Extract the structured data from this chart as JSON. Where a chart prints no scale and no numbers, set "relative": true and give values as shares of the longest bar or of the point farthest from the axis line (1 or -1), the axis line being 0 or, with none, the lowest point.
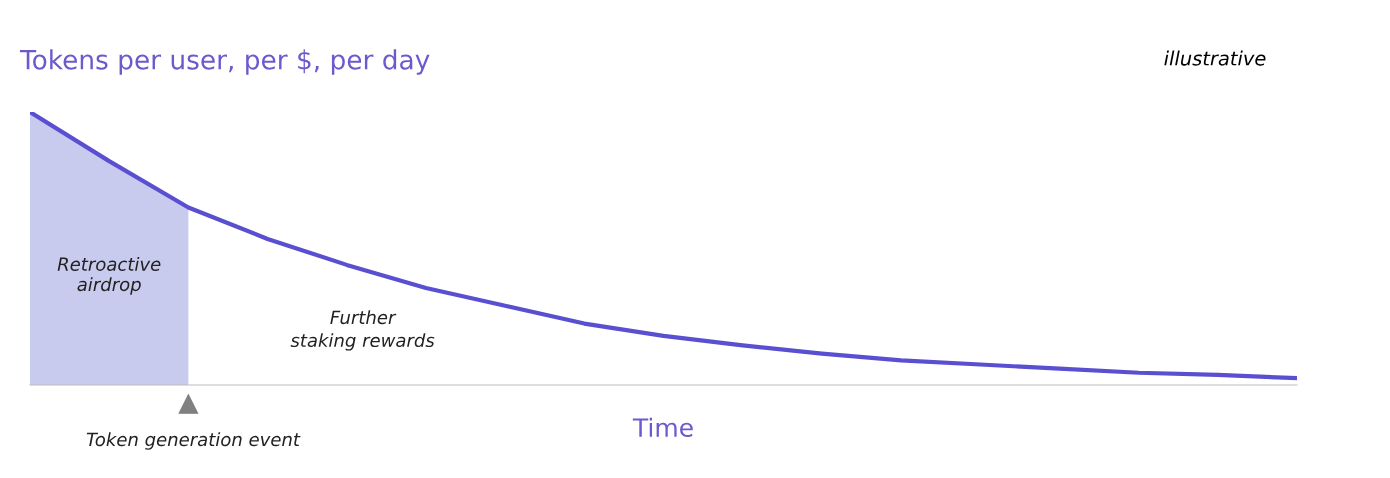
{
  "chart_data": {
    "type": "line",
    "relative": true,
    "title": "Tokens per user, per $, per day",
    "xlabel": "Time",
    "categories": [
      null,
      null,
      null,
      null,
      null,
      null,
      null,
      null,
      null,
      null,
      null,
      null,
      null,
      null,
      null,
      null,
      null
    ],
    "series": [
      {
        "type": "area",
        "color": "#c9cbee",
        "values": [
          1.0,
          0.82,
          0.65,
          null,
          null,
          null,
          null,
          null,
          null,
          null,
          null,
          null,
          null,
          null,
          null,
          null,
          null
        ]
      },
      {
        "color": "#5a4fd0",
        "values": [
          1.0,
          0.82,
          0.65,
          0.535,
          0.44,
          0.355,
          0.29,
          0.225,
          0.18,
          0.145,
          0.115,
          0.09,
          0.075,
          0.06,
          0.045,
          0.037,
          0.025
        ]
      }
    ],
    "annotations": [
      "illustrative",
      "Retroactive\nairdrop",
      "Further\nstaking rewards",
      "Token generation event"
    ],
    "grid": false,
    "legend": false,
    "marker": "none",
    "line_style": "solid"
  }
}
